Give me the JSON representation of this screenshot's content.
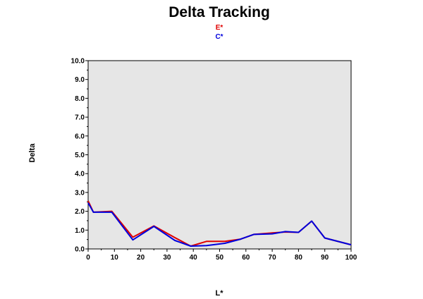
{
  "chart_data": {
    "type": "line",
    "title": "Delta Tracking",
    "xlabel": "L*",
    "ylabel": "Delta",
    "xlim": [
      0,
      100
    ],
    "ylim": [
      0,
      10
    ],
    "x_ticks": [
      "0",
      "10",
      "20",
      "30",
      "40",
      "50",
      "60",
      "70",
      "80",
      "90",
      "100"
    ],
    "y_ticks": [
      "0.0",
      "1.0",
      "2.0",
      "3.0",
      "4.0",
      "5.0",
      "6.0",
      "7.0",
      "8.0",
      "9.0",
      "10.0"
    ],
    "legend_position": "top-center",
    "grid": false,
    "series": [
      {
        "name": "E*",
        "color": "#e00000",
        "x": [
          0,
          2,
          9,
          17,
          25,
          33,
          39,
          45,
          52,
          58,
          63,
          70,
          75,
          80,
          85,
          90,
          100
        ],
        "y": [
          2.55,
          1.95,
          2.0,
          0.62,
          1.22,
          0.6,
          0.15,
          0.4,
          0.4,
          0.52,
          0.77,
          0.85,
          0.9,
          0.88,
          1.48,
          0.58,
          0.22
        ]
      },
      {
        "name": "C*",
        "color": "#0000dd",
        "x": [
          0,
          2,
          9,
          17,
          25,
          33,
          39,
          45,
          52,
          58,
          63,
          70,
          75,
          80,
          85,
          90,
          100
        ],
        "y": [
          2.45,
          1.95,
          1.95,
          0.48,
          1.2,
          0.45,
          0.15,
          0.18,
          0.3,
          0.52,
          0.77,
          0.8,
          0.92,
          0.88,
          1.48,
          0.58,
          0.22
        ]
      }
    ]
  }
}
